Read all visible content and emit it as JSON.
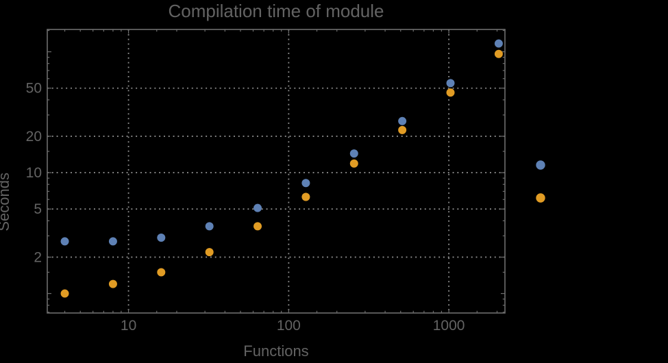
{
  "chart_data": {
    "type": "scatter",
    "title": "Compilation time of module",
    "xlabel": "Functions",
    "ylabel": "Seconds",
    "x_scale": "log",
    "y_scale": "log",
    "x_range": [
      3.11,
      2240
    ],
    "y_range": [
      0.69,
      153
    ],
    "x_tick_values": [
      10,
      100,
      1000
    ],
    "x_tick_labels": [
      "10",
      "100",
      "1000"
    ],
    "y_tick_values": [
      2,
      5,
      10,
      20,
      50
    ],
    "y_tick_labels": [
      "2",
      "5",
      "10",
      "20",
      "50"
    ],
    "grid": "dotted, at labeled ticks only",
    "legend_position": "right, markers only, no visible labels",
    "categories_x": [
      4,
      8,
      16,
      32,
      64,
      128,
      256,
      512,
      1024,
      2048
    ],
    "series": [
      {
        "name": "blue",
        "color": "#5E81B5",
        "values": [
          2.7,
          2.7,
          2.9,
          3.6,
          5.1,
          8.2,
          14.4,
          26.7,
          55,
          117
        ]
      },
      {
        "name": "orange",
        "color": "#E19C24",
        "values": [
          1.0,
          1.2,
          1.5,
          2.2,
          3.6,
          6.3,
          11.9,
          22.5,
          46,
          96
        ]
      }
    ],
    "legend_markers": [
      {
        "series": "blue",
        "color": "#5E81B5"
      },
      {
        "series": "orange",
        "color": "#E19C24"
      }
    ]
  },
  "colors": {
    "background": "#000000",
    "frame": "#6e6e6e",
    "grid": "#8f8f8f",
    "text": "#636363"
  }
}
